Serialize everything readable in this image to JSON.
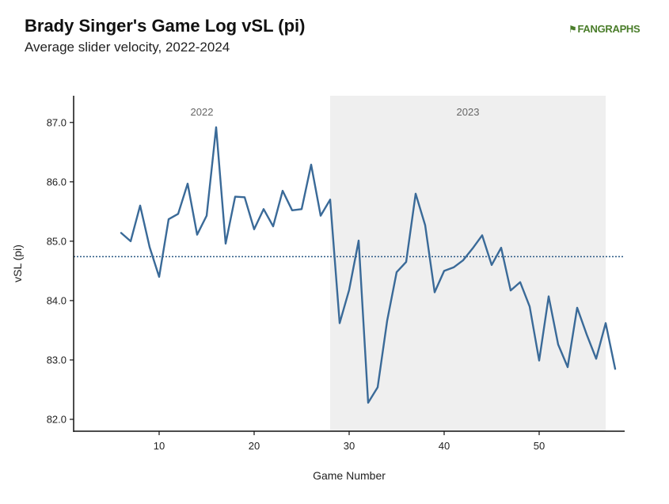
{
  "header": {
    "title": "Brady Singer's Game Log vSL (pi)",
    "subtitle": "Average slider velocity, 2022-2024"
  },
  "logo": {
    "text_fan": "FAN",
    "text_graphs": "GRAPHS",
    "icon": "batter-icon",
    "color": "#4a7d2a"
  },
  "chart_data": {
    "type": "line",
    "xlabel": "Game Number",
    "ylabel": "vSL (pi)",
    "xlim": [
      1,
      59
    ],
    "ylim": [
      81.8,
      87.45
    ],
    "xticks": [
      10,
      20,
      30,
      40,
      50
    ],
    "yticks": [
      82.0,
      83.0,
      84.0,
      85.0,
      86.0,
      87.0
    ],
    "ytick_labels": [
      "82.0",
      "83.0",
      "84.0",
      "85.0",
      "86.0",
      "87.0"
    ],
    "average_line": {
      "value": 84.74,
      "style": "dotted",
      "color": "#2b5a85"
    },
    "seasons": [
      {
        "label": "2022",
        "start": 1,
        "end": 28,
        "shaded": false
      },
      {
        "label": "2023",
        "start": 28,
        "end": 57,
        "shaded": true,
        "color": "#efefef"
      }
    ],
    "line_color": "#3a6a98",
    "series": [
      {
        "x": [
          6,
          7,
          8,
          9,
          10,
          11,
          12,
          13,
          14,
          15,
          16,
          17,
          18,
          19,
          20,
          21,
          22,
          23,
          24,
          25,
          26,
          27,
          28,
          29,
          30,
          31,
          32,
          33,
          34,
          35,
          36,
          37,
          38,
          39,
          40,
          41,
          42,
          43,
          44,
          45,
          46,
          47,
          48,
          49,
          50,
          51,
          52,
          53,
          54,
          55,
          56,
          57,
          58
        ],
        "values": [
          85.14,
          85.0,
          85.6,
          84.9,
          84.4,
          85.37,
          85.46,
          85.97,
          85.11,
          85.43,
          86.92,
          84.96,
          85.75,
          85.74,
          85.2,
          85.54,
          85.25,
          85.85,
          85.52,
          85.54,
          86.29,
          85.43,
          85.7,
          83.62,
          84.18,
          85.01,
          82.28,
          82.54,
          83.66,
          84.48,
          84.65,
          85.8,
          85.27,
          84.14,
          84.5,
          84.56,
          84.68,
          84.88,
          85.1,
          84.6,
          84.89,
          84.17,
          84.31,
          83.9,
          82.99,
          84.07,
          83.26,
          82.88,
          83.88,
          83.43,
          83.02,
          83.62,
          82.85
        ]
      }
    ]
  }
}
